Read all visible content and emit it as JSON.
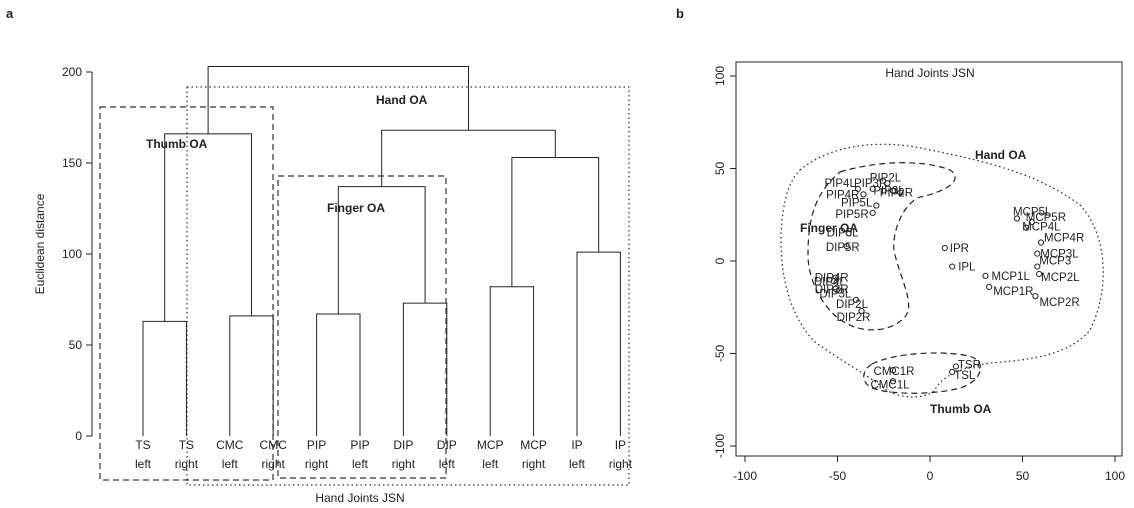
{
  "chart_data": [
    {
      "panel": "a",
      "type": "dendrogram",
      "ylabel": "Euclidean distance",
      "xlabel": "Hand Joints JSN",
      "ylim": [
        0,
        200
      ],
      "yticks": [
        0,
        50,
        100,
        150,
        200
      ],
      "leaves": [
        [
          "TS",
          "left"
        ],
        [
          "TS",
          "right"
        ],
        [
          "CMC",
          "left"
        ],
        [
          "CMC",
          "right"
        ],
        [
          "PIP",
          "right"
        ],
        [
          "PIP",
          "left"
        ],
        [
          "DIP",
          "right"
        ],
        [
          "DIP",
          "left"
        ],
        [
          "MCP",
          "left"
        ],
        [
          "MCP",
          "right"
        ],
        [
          "IP",
          "left"
        ],
        [
          "IP",
          "right"
        ]
      ],
      "merges": [
        {
          "a": "L0",
          "b": "L1",
          "height": 63
        },
        {
          "a": "L2",
          "b": "L3",
          "height": 66
        },
        {
          "a": "L4",
          "b": "L5",
          "height": 67
        },
        {
          "a": "L6",
          "b": "L7",
          "height": 73
        },
        {
          "a": "L8",
          "b": "L9",
          "height": 82
        },
        {
          "a": "L10",
          "b": "L11",
          "height": 101
        },
        {
          "a": "M2",
          "b": "M3",
          "height": 137
        },
        {
          "a": "M4",
          "b": "M5",
          "height": 153
        },
        {
          "a": "M0",
          "b": "M1",
          "height": 166
        },
        {
          "a": "M6",
          "b": "M7",
          "height": 168
        },
        {
          "a": "M8",
          "b": "M9",
          "height": 203
        }
      ],
      "groups": [
        {
          "label": "Thumb OA",
          "style": "dashed",
          "from": 0,
          "to": 3
        },
        {
          "label": "Finger OA",
          "style": "dashed",
          "from": 4,
          "to": 7
        },
        {
          "label": "Hand OA",
          "style": "dotted",
          "from": 2,
          "to": 11
        }
      ]
    },
    {
      "panel": "b",
      "type": "scatter",
      "title": "Hand Joints JSN",
      "xlim": [
        -110,
        110
      ],
      "ylim": [
        -110,
        110
      ],
      "xticks": [
        -100,
        -50,
        0,
        50,
        100
      ],
      "yticks": [
        -100,
        -50,
        0,
        50,
        100
      ],
      "points": [
        {
          "label": "PIP2L",
          "x": -23,
          "y": 42
        },
        {
          "label": "PIP4L",
          "x": -39,
          "y": 39
        },
        {
          "label": "PIP3R",
          "x": -31,
          "y": 39
        },
        {
          "label": "PIP3L",
          "x": -20,
          "y": 38
        },
        {
          "label": "PIP2R",
          "x": -16,
          "y": 37
        },
        {
          "label": "PIP4R",
          "x": -36,
          "y": 36
        },
        {
          "label": "PIP5L",
          "x": -29,
          "y": 30
        },
        {
          "label": "PIP5R",
          "x": -31,
          "y": 26
        },
        {
          "label": "DIP5L",
          "x": -44,
          "y": 15
        },
        {
          "label": "DIP5R",
          "x": -45,
          "y": 8
        },
        {
          "label": "DIP4R",
          "x": -51,
          "y": -9
        },
        {
          "label": "DIP4L",
          "x": -52,
          "y": -11
        },
        {
          "label": "DIP3R",
          "x": -51,
          "y": -15
        },
        {
          "label": "DIP3L",
          "x": -49,
          "y": -16
        },
        {
          "label": "DIP2L",
          "x": -40,
          "y": -21
        },
        {
          "label": "DIP2R",
          "x": -37,
          "y": -27
        },
        {
          "label": "IPR",
          "x": 8,
          "y": 7
        },
        {
          "label": "IPL",
          "x": 12,
          "y": -3
        },
        {
          "label": "MCP5L",
          "x": 47,
          "y": 23
        },
        {
          "label": "MCP5R",
          "x": 55,
          "y": 21
        },
        {
          "label": "MCP4L",
          "x": 52,
          "y": 18
        },
        {
          "label": "MCP4R",
          "x": 60,
          "y": 10
        },
        {
          "label": "MCP3L",
          "x": 58,
          "y": 4
        },
        {
          "label": "MCP3",
          "x": 58,
          "y": -3
        },
        {
          "label": "MCP2L",
          "x": 59,
          "y": -7
        },
        {
          "label": "MCP1L",
          "x": 30,
          "y": -8
        },
        {
          "label": "MCP1R",
          "x": 32,
          "y": -14
        },
        {
          "label": "MCP2R",
          "x": 57,
          "y": -19
        },
        {
          "label": "CMC1R",
          "x": -20,
          "y": -59
        },
        {
          "label": "CMC1L",
          "x": -20,
          "y": -65
        },
        {
          "label": "TSR",
          "x": 14,
          "y": -57
        },
        {
          "label": "TSL",
          "x": 12,
          "y": -60
        }
      ],
      "groups": [
        {
          "label": "Hand OA",
          "style": "dotted"
        },
        {
          "label": "Finger OA",
          "style": "dashed"
        },
        {
          "label": "Thumb OA",
          "style": "dashed"
        }
      ]
    }
  ],
  "panels": {
    "a": "a",
    "b": "b"
  }
}
